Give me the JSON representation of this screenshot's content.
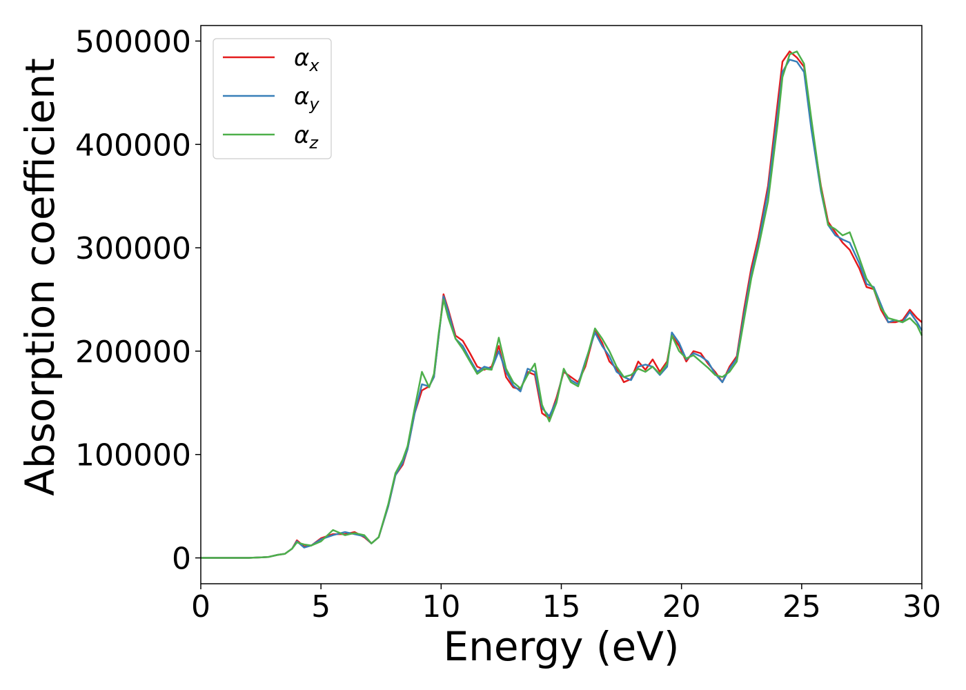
{
  "chart_data": {
    "type": "line",
    "xlabel": "Energy (eV)",
    "ylabel": "Absorption coefficient",
    "xlim": [
      0,
      30
    ],
    "ylim": [
      -25000,
      515000
    ],
    "xticks": [
      0,
      5,
      10,
      15,
      20,
      25,
      30
    ],
    "yticks": [
      0,
      100000,
      200000,
      300000,
      400000,
      500000
    ],
    "xtick_labels": [
      "0",
      "5",
      "10",
      "15",
      "20",
      "25",
      "30"
    ],
    "ytick_labels": [
      "0",
      "100000",
      "200000",
      "300000",
      "400000",
      "500000"
    ],
    "grid": false,
    "legend_position": "top-left",
    "series": [
      {
        "name": "α_x",
        "legend_base": "α",
        "legend_sub": "x",
        "color": "#e41a1c",
        "points": [
          [
            0,
            0
          ],
          [
            1,
            0
          ],
          [
            2,
            0
          ],
          [
            2.8,
            800
          ],
          [
            3.2,
            3000
          ],
          [
            3.5,
            4000
          ],
          [
            3.8,
            9000
          ],
          [
            4.0,
            17000
          ],
          [
            4.3,
            11000
          ],
          [
            4.6,
            12000
          ],
          [
            5.0,
            19000
          ],
          [
            5.5,
            23000
          ],
          [
            6.0,
            23000
          ],
          [
            6.4,
            25000
          ],
          [
            6.8,
            20000
          ],
          [
            7.1,
            14000
          ],
          [
            7.4,
            20000
          ],
          [
            7.8,
            50000
          ],
          [
            8.1,
            80000
          ],
          [
            8.4,
            90000
          ],
          [
            8.6,
            105000
          ],
          [
            8.9,
            140000
          ],
          [
            9.2,
            162000
          ],
          [
            9.5,
            166000
          ],
          [
            9.7,
            175000
          ],
          [
            9.9,
            215000
          ],
          [
            10.1,
            255000
          ],
          [
            10.3,
            240000
          ],
          [
            10.6,
            215000
          ],
          [
            10.9,
            210000
          ],
          [
            11.2,
            198000
          ],
          [
            11.5,
            185000
          ],
          [
            11.8,
            182000
          ],
          [
            12.1,
            185000
          ],
          [
            12.4,
            205000
          ],
          [
            12.7,
            175000
          ],
          [
            13.0,
            165000
          ],
          [
            13.3,
            163000
          ],
          [
            13.6,
            180000
          ],
          [
            13.9,
            177000
          ],
          [
            14.2,
            140000
          ],
          [
            14.5,
            135000
          ],
          [
            14.8,
            155000
          ],
          [
            15.1,
            180000
          ],
          [
            15.4,
            175000
          ],
          [
            15.7,
            170000
          ],
          [
            16.0,
            185000
          ],
          [
            16.4,
            220000
          ],
          [
            16.7,
            208000
          ],
          [
            17.0,
            190000
          ],
          [
            17.3,
            183000
          ],
          [
            17.6,
            170000
          ],
          [
            17.9,
            173000
          ],
          [
            18.2,
            190000
          ],
          [
            18.5,
            182000
          ],
          [
            18.8,
            192000
          ],
          [
            19.1,
            180000
          ],
          [
            19.4,
            190000
          ],
          [
            19.6,
            215000
          ],
          [
            19.9,
            205000
          ],
          [
            20.2,
            190000
          ],
          [
            20.5,
            200000
          ],
          [
            20.8,
            198000
          ],
          [
            21.1,
            188000
          ],
          [
            21.4,
            180000
          ],
          [
            21.7,
            170000
          ],
          [
            22.0,
            185000
          ],
          [
            22.3,
            195000
          ],
          [
            22.6,
            240000
          ],
          [
            22.9,
            280000
          ],
          [
            23.2,
            310000
          ],
          [
            23.6,
            360000
          ],
          [
            24.0,
            440000
          ],
          [
            24.2,
            480000
          ],
          [
            24.5,
            490000
          ],
          [
            24.8,
            484000
          ],
          [
            25.1,
            475000
          ],
          [
            25.4,
            420000
          ],
          [
            25.8,
            360000
          ],
          [
            26.1,
            325000
          ],
          [
            26.4,
            315000
          ],
          [
            26.7,
            305000
          ],
          [
            27.0,
            298000
          ],
          [
            27.4,
            280000
          ],
          [
            27.7,
            262000
          ],
          [
            28.0,
            260000
          ],
          [
            28.3,
            240000
          ],
          [
            28.6,
            228000
          ],
          [
            28.9,
            228000
          ],
          [
            29.2,
            230000
          ],
          [
            29.5,
            240000
          ],
          [
            29.8,
            232000
          ],
          [
            30.0,
            228000
          ]
        ]
      },
      {
        "name": "α_y",
        "legend_base": "α",
        "legend_sub": "y",
        "color": "#377eb8",
        "points": [
          [
            0,
            0
          ],
          [
            1,
            0
          ],
          [
            2,
            0
          ],
          [
            2.8,
            800
          ],
          [
            3.2,
            3000
          ],
          [
            3.5,
            4000
          ],
          [
            3.8,
            9000
          ],
          [
            4.0,
            16000
          ],
          [
            4.3,
            10000
          ],
          [
            4.6,
            12000
          ],
          [
            5.0,
            18000
          ],
          [
            5.5,
            22000
          ],
          [
            6.0,
            25000
          ],
          [
            6.4,
            23000
          ],
          [
            6.8,
            21000
          ],
          [
            7.1,
            14000
          ],
          [
            7.4,
            20000
          ],
          [
            7.8,
            50000
          ],
          [
            8.1,
            80000
          ],
          [
            8.4,
            92000
          ],
          [
            8.6,
            105000
          ],
          [
            8.9,
            140000
          ],
          [
            9.2,
            168000
          ],
          [
            9.5,
            166000
          ],
          [
            9.7,
            175000
          ],
          [
            9.9,
            215000
          ],
          [
            10.1,
            253000
          ],
          [
            10.3,
            238000
          ],
          [
            10.6,
            212000
          ],
          [
            10.9,
            205000
          ],
          [
            11.2,
            192000
          ],
          [
            11.5,
            180000
          ],
          [
            11.8,
            185000
          ],
          [
            12.1,
            183000
          ],
          [
            12.4,
            200000
          ],
          [
            12.7,
            180000
          ],
          [
            13.0,
            167000
          ],
          [
            13.3,
            161000
          ],
          [
            13.6,
            183000
          ],
          [
            13.9,
            180000
          ],
          [
            14.2,
            145000
          ],
          [
            14.5,
            137000
          ],
          [
            14.8,
            152000
          ],
          [
            15.1,
            182000
          ],
          [
            15.4,
            172000
          ],
          [
            15.7,
            168000
          ],
          [
            16.0,
            190000
          ],
          [
            16.4,
            218000
          ],
          [
            16.7,
            205000
          ],
          [
            17.0,
            195000
          ],
          [
            17.3,
            180000
          ],
          [
            17.6,
            175000
          ],
          [
            17.9,
            172000
          ],
          [
            18.2,
            185000
          ],
          [
            18.5,
            187000
          ],
          [
            18.8,
            185000
          ],
          [
            19.1,
            177000
          ],
          [
            19.4,
            185000
          ],
          [
            19.6,
            218000
          ],
          [
            19.9,
            208000
          ],
          [
            20.2,
            192000
          ],
          [
            20.5,
            198000
          ],
          [
            20.8,
            195000
          ],
          [
            21.1,
            190000
          ],
          [
            21.4,
            178000
          ],
          [
            21.7,
            170000
          ],
          [
            22.0,
            183000
          ],
          [
            22.3,
            193000
          ],
          [
            22.6,
            235000
          ],
          [
            22.9,
            275000
          ],
          [
            23.2,
            305000
          ],
          [
            23.6,
            355000
          ],
          [
            24.0,
            430000
          ],
          [
            24.2,
            470000
          ],
          [
            24.5,
            482000
          ],
          [
            24.8,
            480000
          ],
          [
            25.1,
            470000
          ],
          [
            25.4,
            415000
          ],
          [
            25.8,
            355000
          ],
          [
            26.1,
            322000
          ],
          [
            26.4,
            312000
          ],
          [
            26.7,
            308000
          ],
          [
            27.0,
            305000
          ],
          [
            27.4,
            285000
          ],
          [
            27.7,
            265000
          ],
          [
            28.0,
            262000
          ],
          [
            28.3,
            245000
          ],
          [
            28.6,
            228000
          ],
          [
            28.9,
            230000
          ],
          [
            29.2,
            228000
          ],
          [
            29.5,
            238000
          ],
          [
            29.8,
            228000
          ],
          [
            30.0,
            220000
          ]
        ]
      },
      {
        "name": "α_z",
        "legend_base": "α",
        "legend_sub": "z",
        "color": "#4daf4a",
        "points": [
          [
            0,
            0
          ],
          [
            1,
            0
          ],
          [
            2,
            0
          ],
          [
            2.8,
            800
          ],
          [
            3.2,
            3000
          ],
          [
            3.5,
            4000
          ],
          [
            3.8,
            9000
          ],
          [
            4.0,
            15000
          ],
          [
            4.3,
            13000
          ],
          [
            4.6,
            12000
          ],
          [
            5.0,
            16000
          ],
          [
            5.5,
            27000
          ],
          [
            6.0,
            22000
          ],
          [
            6.4,
            24000
          ],
          [
            6.8,
            22000
          ],
          [
            7.1,
            14000
          ],
          [
            7.4,
            20000
          ],
          [
            7.8,
            52000
          ],
          [
            8.1,
            82000
          ],
          [
            8.4,
            95000
          ],
          [
            8.6,
            108000
          ],
          [
            8.9,
            145000
          ],
          [
            9.2,
            180000
          ],
          [
            9.5,
            165000
          ],
          [
            9.7,
            178000
          ],
          [
            9.9,
            218000
          ],
          [
            10.1,
            250000
          ],
          [
            10.3,
            232000
          ],
          [
            10.6,
            212000
          ],
          [
            10.9,
            202000
          ],
          [
            11.2,
            190000
          ],
          [
            11.5,
            178000
          ],
          [
            11.8,
            183000
          ],
          [
            12.1,
            182000
          ],
          [
            12.4,
            213000
          ],
          [
            12.7,
            183000
          ],
          [
            13.0,
            170000
          ],
          [
            13.3,
            164000
          ],
          [
            13.6,
            177000
          ],
          [
            13.9,
            188000
          ],
          [
            14.2,
            148000
          ],
          [
            14.5,
            132000
          ],
          [
            14.8,
            150000
          ],
          [
            15.1,
            183000
          ],
          [
            15.4,
            170000
          ],
          [
            15.7,
            166000
          ],
          [
            16.0,
            188000
          ],
          [
            16.4,
            222000
          ],
          [
            16.7,
            212000
          ],
          [
            17.0,
            200000
          ],
          [
            17.3,
            185000
          ],
          [
            17.6,
            175000
          ],
          [
            17.9,
            177000
          ],
          [
            18.2,
            183000
          ],
          [
            18.5,
            180000
          ],
          [
            18.8,
            185000
          ],
          [
            19.1,
            178000
          ],
          [
            19.4,
            188000
          ],
          [
            19.6,
            215000
          ],
          [
            19.9,
            200000
          ],
          [
            20.2,
            193000
          ],
          [
            20.5,
            196000
          ],
          [
            20.8,
            190000
          ],
          [
            21.1,
            184000
          ],
          [
            21.4,
            177000
          ],
          [
            21.7,
            175000
          ],
          [
            22.0,
            180000
          ],
          [
            22.3,
            190000
          ],
          [
            22.6,
            230000
          ],
          [
            22.9,
            270000
          ],
          [
            23.2,
            300000
          ],
          [
            23.6,
            345000
          ],
          [
            24.0,
            420000
          ],
          [
            24.2,
            465000
          ],
          [
            24.5,
            487000
          ],
          [
            24.8,
            490000
          ],
          [
            25.1,
            478000
          ],
          [
            25.4,
            425000
          ],
          [
            25.8,
            358000
          ],
          [
            26.1,
            322000
          ],
          [
            26.4,
            318000
          ],
          [
            26.7,
            312000
          ],
          [
            27.0,
            315000
          ],
          [
            27.4,
            290000
          ],
          [
            27.7,
            270000
          ],
          [
            28.0,
            260000
          ],
          [
            28.3,
            242000
          ],
          [
            28.6,
            232000
          ],
          [
            28.9,
            230000
          ],
          [
            29.2,
            228000
          ],
          [
            29.5,
            232000
          ],
          [
            29.8,
            225000
          ],
          [
            30.0,
            215000
          ]
        ]
      }
    ]
  }
}
